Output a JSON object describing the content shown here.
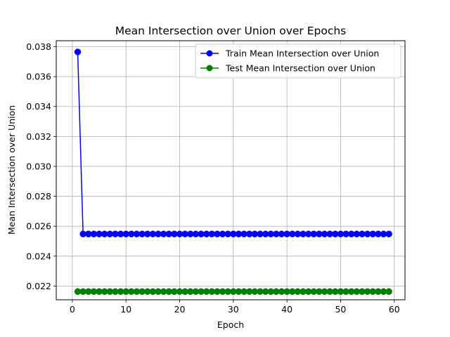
{
  "chart_data": {
    "type": "line",
    "title": "Mean Intersection over Union over Epochs",
    "xlabel": "Epoch",
    "ylabel": "Mean Intersection over Union",
    "xlim": [
      -3,
      62
    ],
    "ylim": [
      0.02108,
      0.0384
    ],
    "xticks": [
      0,
      10,
      20,
      30,
      40,
      50,
      60
    ],
    "yticks": [
      0.022,
      0.024,
      0.026,
      0.028,
      0.03,
      0.032,
      0.034,
      0.036,
      0.038
    ],
    "xtick_labels": [
      "0",
      "10",
      "20",
      "30",
      "40",
      "50",
      "60"
    ],
    "ytick_labels": [
      "0.022",
      "0.024",
      "0.026",
      "0.028",
      "0.030",
      "0.032",
      "0.034",
      "0.036",
      "0.038"
    ],
    "grid": true,
    "legend_position": "top-right",
    "series": [
      {
        "name": "Train Mean Intersection over Union",
        "color": "#0000ff",
        "marker": "circle",
        "x": [
          1,
          2,
          3,
          4,
          5,
          6,
          7,
          8,
          9,
          10,
          11,
          12,
          13,
          14,
          15,
          16,
          17,
          18,
          19,
          20,
          21,
          22,
          23,
          24,
          25,
          26,
          27,
          28,
          29,
          30,
          31,
          32,
          33,
          34,
          35,
          36,
          37,
          38,
          39,
          40,
          41,
          42,
          43,
          44,
          45,
          46,
          47,
          48,
          49,
          50,
          51,
          52,
          53,
          54,
          55,
          56,
          57,
          58,
          59
        ],
        "y": [
          0.03765,
          0.02548,
          0.02548,
          0.02548,
          0.02548,
          0.02548,
          0.02548,
          0.02548,
          0.02548,
          0.02548,
          0.02548,
          0.02548,
          0.02548,
          0.02548,
          0.02548,
          0.02548,
          0.02548,
          0.02548,
          0.02548,
          0.02548,
          0.02548,
          0.02548,
          0.02548,
          0.02548,
          0.02548,
          0.02548,
          0.02548,
          0.02548,
          0.02548,
          0.02548,
          0.02548,
          0.02548,
          0.02548,
          0.02548,
          0.02548,
          0.02548,
          0.02548,
          0.02548,
          0.02548,
          0.02548,
          0.02548,
          0.02548,
          0.02548,
          0.02548,
          0.02548,
          0.02548,
          0.02548,
          0.02548,
          0.02548,
          0.02548,
          0.02548,
          0.02548,
          0.02548,
          0.02548,
          0.02548,
          0.02548,
          0.02548,
          0.02548,
          0.02548
        ]
      },
      {
        "name": "Test Mean Intersection over Union",
        "color": "#008000",
        "marker": "circle",
        "x": [
          1,
          2,
          3,
          4,
          5,
          6,
          7,
          8,
          9,
          10,
          11,
          12,
          13,
          14,
          15,
          16,
          17,
          18,
          19,
          20,
          21,
          22,
          23,
          24,
          25,
          26,
          27,
          28,
          29,
          30,
          31,
          32,
          33,
          34,
          35,
          36,
          37,
          38,
          39,
          40,
          41,
          42,
          43,
          44,
          45,
          46,
          47,
          48,
          49,
          50,
          51,
          52,
          53,
          54,
          55,
          56,
          57,
          58,
          59
        ],
        "y": [
          0.02163,
          0.02163,
          0.02163,
          0.02163,
          0.02163,
          0.02163,
          0.02163,
          0.02163,
          0.02163,
          0.02163,
          0.02163,
          0.02163,
          0.02163,
          0.02163,
          0.02163,
          0.02163,
          0.02163,
          0.02163,
          0.02163,
          0.02163,
          0.02163,
          0.02163,
          0.02163,
          0.02163,
          0.02163,
          0.02163,
          0.02163,
          0.02163,
          0.02163,
          0.02163,
          0.02163,
          0.02163,
          0.02163,
          0.02163,
          0.02163,
          0.02163,
          0.02163,
          0.02163,
          0.02163,
          0.02163,
          0.02163,
          0.02163,
          0.02163,
          0.02163,
          0.02163,
          0.02163,
          0.02163,
          0.02163,
          0.02163,
          0.02163,
          0.02163,
          0.02163,
          0.02163,
          0.02163,
          0.02163,
          0.02163,
          0.02163,
          0.02163,
          0.02163
        ]
      }
    ]
  }
}
